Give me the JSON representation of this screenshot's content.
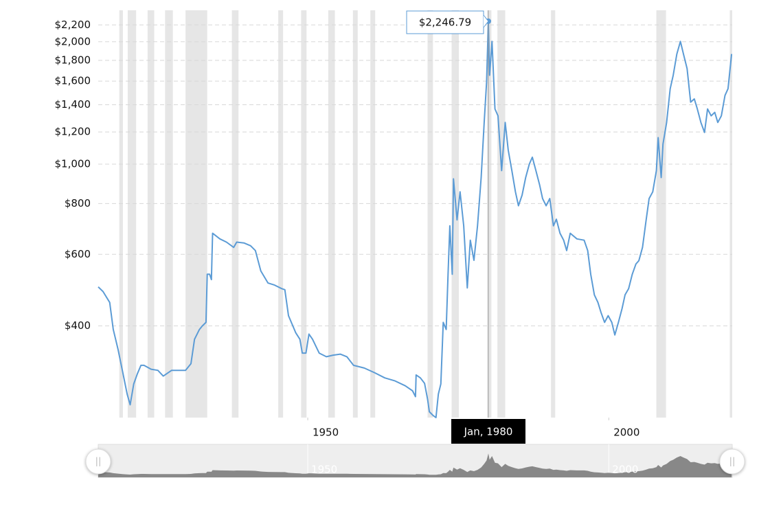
{
  "chart_data": {
    "type": "line",
    "log_scale": true,
    "grid": true,
    "xlim": [
      1915.2,
      2020.5
    ],
    "xticks": [
      1950,
      2000
    ],
    "ylim": [
      238,
      2390
    ],
    "yticks": [
      {
        "value": 400,
        "label": "$400"
      },
      {
        "value": 600,
        "label": "$600"
      },
      {
        "value": 800,
        "label": "$800"
      },
      {
        "value": 1000,
        "label": "$1,000"
      },
      {
        "value": 1200,
        "label": "$1,200"
      },
      {
        "value": 1400,
        "label": "$1,400"
      },
      {
        "value": 1600,
        "label": "$1,600"
      },
      {
        "value": 1800,
        "label": "$1,800"
      },
      {
        "value": 2000,
        "label": "$2,000"
      },
      {
        "value": 2200,
        "label": "$2,200"
      }
    ],
    "recessions": [
      [
        1918.7,
        1919.3
      ],
      [
        1920.1,
        1921.5
      ],
      [
        1923.4,
        1924.5
      ],
      [
        1926.3,
        1927.6
      ],
      [
        1929.7,
        1933.3
      ],
      [
        1937.4,
        1938.5
      ],
      [
        1945.1,
        1945.9
      ],
      [
        1948.9,
        1949.8
      ],
      [
        1953.4,
        1954.5
      ],
      [
        1957.5,
        1958.3
      ],
      [
        1960.4,
        1961.2
      ],
      [
        1969.9,
        1970.8
      ],
      [
        1973.9,
        1975.1
      ],
      [
        1979.8,
        1980.5
      ],
      [
        1981.5,
        1982.8
      ],
      [
        1990.4,
        1991.1
      ],
      [
        2007.9,
        2009.5
      ],
      [
        2020.1,
        2020.5
      ]
    ],
    "recession_color": "#e6e6e6",
    "x": [
      1915.2,
      1916.0,
      1917.1,
      1917.7,
      1918.5,
      1919.2,
      1920.0,
      1920.5,
      1921.1,
      1921.7,
      1922.3,
      1922.8,
      1924.0,
      1925.1,
      1926.0,
      1927.4,
      1928.5,
      1929.7,
      1930.6,
      1931.2,
      1932.0,
      1932.5,
      1933.1,
      1933.3,
      1933.7,
      1934.0,
      1934.2,
      1935.4,
      1936.5,
      1937.7,
      1938.2,
      1939.4,
      1940.5,
      1941.3,
      1942.2,
      1943.4,
      1944.5,
      1945.7,
      1946.2,
      1946.8,
      1948.0,
      1948.7,
      1949.1,
      1949.7,
      1950.2,
      1950.8,
      1951.9,
      1953.1,
      1954.2,
      1955.4,
      1956.5,
      1957.6,
      1959.4,
      1961.1,
      1962.8,
      1964.5,
      1966.2,
      1967.4,
      1967.9,
      1968.0,
      1968.7,
      1969.4,
      1969.9,
      1970.2,
      1970.8,
      1971.3,
      1971.7,
      1972.1,
      1972.5,
      1973.0,
      1973.3,
      1973.6,
      1974.0,
      1974.2,
      1974.8,
      1975.3,
      1975.9,
      1976.5,
      1977.0,
      1977.6,
      1978.2,
      1978.8,
      1979.3,
      1979.7,
      1980.0,
      1980.2,
      1980.6,
      1981.1,
      1981.6,
      1982.2,
      1982.8,
      1983.3,
      1983.9,
      1984.5,
      1985.0,
      1985.6,
      1986.2,
      1986.8,
      1987.3,
      1987.9,
      1988.5,
      1989.0,
      1989.6,
      1990.2,
      1990.8,
      1991.3,
      1991.9,
      1992.5,
      1993.0,
      1993.6,
      1994.7,
      1995.9,
      1996.5,
      1997.0,
      1997.6,
      1998.2,
      1998.7,
      1999.3,
      1999.9,
      2000.5,
      2001.0,
      2001.6,
      2002.2,
      2002.7,
      2003.3,
      2003.9,
      2004.5,
      2005.0,
      2005.6,
      2006.2,
      2006.7,
      2007.3,
      2007.9,
      2008.2,
      2008.7,
      2009.0,
      2009.6,
      2010.2,
      2010.7,
      2011.3,
      2011.9,
      2012.4,
      2013.0,
      2013.6,
      2014.2,
      2014.7,
      2015.3,
      2015.9,
      2016.4,
      2017.0,
      2017.6,
      2018.1,
      2018.7,
      2019.3,
      2019.8,
      2020.4
    ],
    "series": [
      {
        "color": "#5b9bd5",
        "values": [
          499,
          486,
          457,
          392,
          350,
          311,
          272,
          256,
          288,
          305,
          320,
          320,
          313,
          311,
          301,
          311,
          311,
          311,
          323,
          371,
          392,
          400,
          408,
          536,
          536,
          520,
          676,
          655,
          643,
          624,
          643,
          640,
          630,
          613,
          546,
          510,
          504,
          494,
          491,
          424,
          385,
          371,
          343,
          343,
          382,
          371,
          343,
          336,
          339,
          341,
          336,
          320,
          315,
          307,
          298,
          293,
          285,
          277,
          268,
          303,
          298,
          289,
          264,
          246,
          241,
          238,
          272,
          288,
          408,
          392,
          536,
          705,
          536,
          920,
          729,
          855,
          705,
          496,
          650,
          580,
          705,
          927,
          1266,
          1592,
          2246.79,
          1654,
          2004,
          1367,
          1315,
          964,
          1266,
          1083,
          964,
          855,
          790,
          839,
          927,
          1000,
          1040,
          964,
          891,
          823,
          790,
          823,
          705,
          732,
          676,
          650,
          613,
          676,
          655,
          650,
          613,
          536,
          477,
          457,
          432,
          408,
          424,
          408,
          380,
          408,
          441,
          477,
          494,
          536,
          568,
          579,
          624,
          729,
          823,
          855,
          964,
          1162,
          927,
          1120,
          1266,
          1533,
          1654,
          1866,
          2004,
          1866,
          1718,
          1420,
          1447,
          1367,
          1266,
          1197,
          1367,
          1315,
          1341,
          1266,
          1315,
          1476,
          1533,
          1866
        ]
      }
    ],
    "tooltip": {
      "x": 1980.0,
      "value": 2246.79,
      "label": "$2,246.79",
      "x_label": "Jan, 1980"
    }
  }
}
